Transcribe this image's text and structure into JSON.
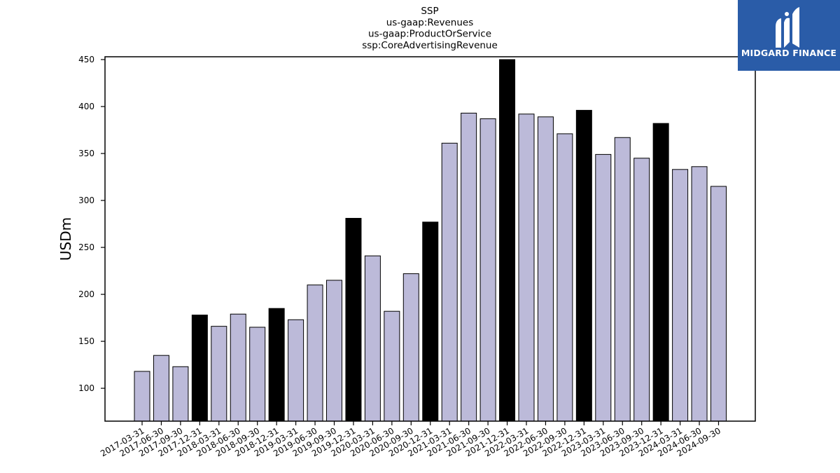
{
  "chart_data": {
    "type": "bar",
    "title_lines": [
      "SSP",
      "us-gaap:Revenues",
      "us-gaap:ProductOrService",
      "ssp:CoreAdvertisingRevenue"
    ],
    "ylabel": "USDm",
    "xlabel": "",
    "ylim": [
      65,
      453
    ],
    "yticks": [
      100,
      150,
      200,
      250,
      300,
      350,
      400,
      450
    ],
    "categories": [
      "2017-03-31",
      "2017-06-30",
      "2017-09-30",
      "2017-12-31",
      "2018-03-31",
      "2018-06-30",
      "2018-09-30",
      "2018-12-31",
      "2019-03-31",
      "2019-06-30",
      "2019-09-30",
      "2019-12-31",
      "2020-03-31",
      "2020-06-30",
      "2020-09-30",
      "2020-12-31",
      "2021-03-31",
      "2021-06-30",
      "2021-09-30",
      "2021-12-31",
      "2022-03-31",
      "2022-06-30",
      "2022-09-30",
      "2022-12-31",
      "2023-03-31",
      "2023-06-30",
      "2023-09-30",
      "2023-12-31",
      "2024-03-31",
      "2024-06-30",
      "2024-09-30"
    ],
    "values": [
      118,
      135,
      123,
      178,
      166,
      179,
      165,
      185,
      173,
      210,
      215,
      281,
      241,
      182,
      222,
      277,
      361,
      393,
      387,
      450,
      392,
      389,
      371,
      396,
      349,
      367,
      345,
      382,
      333,
      336,
      315
    ],
    "colors": {
      "default": "#bcbad9",
      "q4": "#000000",
      "edge": "#000000"
    },
    "grid": false
  },
  "logo": {
    "text": "MIDGARD FINANCE",
    "bg": "#2a5ca8"
  }
}
